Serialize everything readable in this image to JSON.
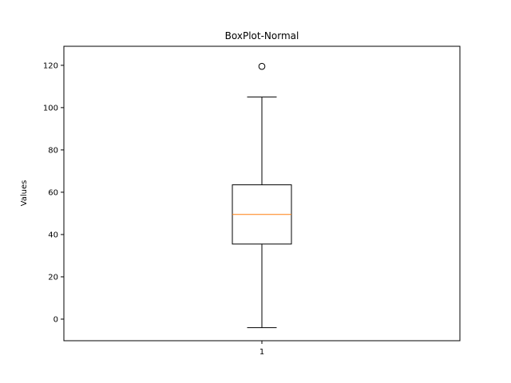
{
  "chart_data": {
    "type": "boxplot",
    "title": "BoxPlot-Normal",
    "xlabel": "",
    "ylabel": "Values",
    "categories": [
      "1"
    ],
    "boxes": [
      {
        "category": "1",
        "whisker_low": -4,
        "q1": 35.5,
        "median": 49.5,
        "q3": 63.5,
        "whisker_high": 105,
        "outliers": [
          119.5
        ]
      }
    ],
    "ylim": [
      -10.2,
      129
    ],
    "yticks": [
      0,
      20,
      40,
      60,
      80,
      100,
      120
    ],
    "grid": false,
    "colors": {
      "median": "#ff7f0e",
      "box": "#000000"
    }
  }
}
